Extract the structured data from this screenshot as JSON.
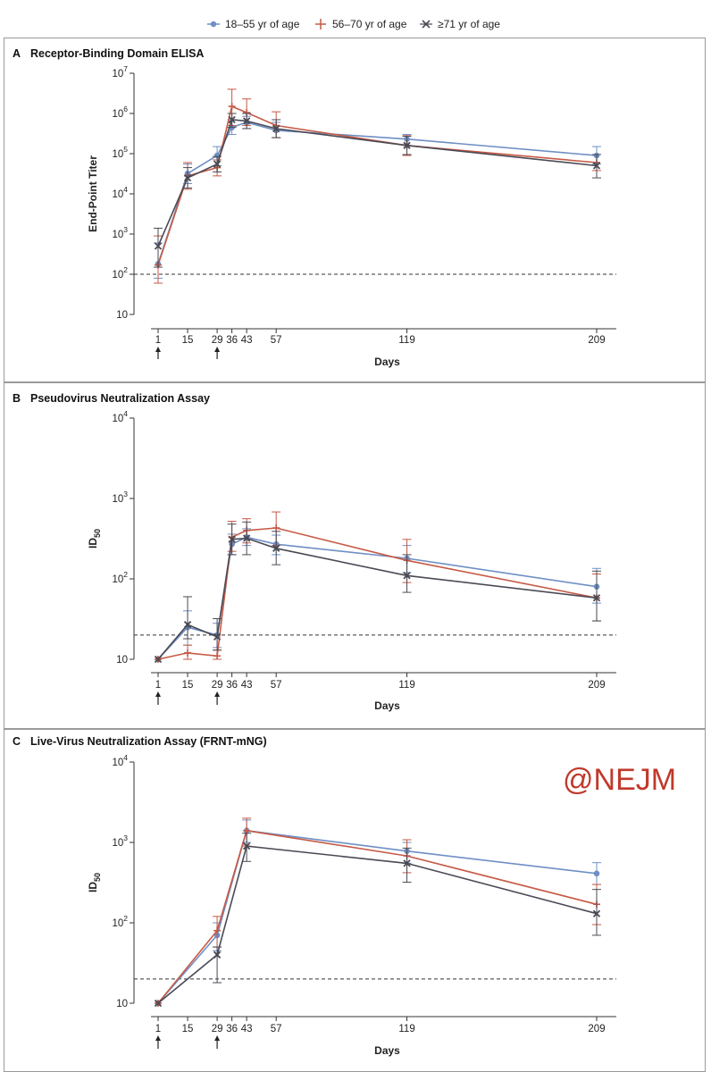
{
  "watermark": "@NEJM",
  "legend": [
    {
      "label": "18–55 yr of age",
      "color": "#6e8fc4",
      "marker": "circle"
    },
    {
      "label": "56–70 yr of age",
      "color": "#c65a46",
      "marker": "plus"
    },
    {
      "label": "≥71 yr of age",
      "color": "#4a4a55",
      "marker": "x"
    }
  ],
  "chart_data": [
    {
      "type": "line",
      "panel_letter": "A",
      "title": "Receptor-Binding Domain ELISA",
      "xlabel": "Days",
      "ylabel": "End-Point Titer",
      "yscale": "log",
      "ylim": [
        10,
        10000000
      ],
      "y_ticks": [
        {
          "value": 10,
          "base": "10",
          "exp": ""
        },
        {
          "value": 100,
          "base": "10",
          "exp": "2"
        },
        {
          "value": 1000,
          "base": "10",
          "exp": "3"
        },
        {
          "value": 10000,
          "base": "10",
          "exp": "4"
        },
        {
          "value": 100000,
          "base": "10",
          "exp": "5"
        },
        {
          "value": 1000000,
          "base": "10",
          "exp": "6"
        },
        {
          "value": 10000000,
          "base": "10",
          "exp": "7"
        }
      ],
      "x_ticks": [
        1,
        15,
        29,
        36,
        43,
        57,
        119,
        209
      ],
      "x_tick_labels": [
        "1",
        "15",
        "29",
        "36",
        "43",
        "57",
        "119",
        "209"
      ],
      "arrows_at": [
        1,
        29
      ],
      "threshold": 100,
      "series": [
        {
          "name": "18–55 yr of age",
          "x": [
            1,
            15,
            29,
            36,
            43,
            57,
            119,
            209
          ],
          "y": [
            180,
            32000,
            90000,
            450000,
            600000,
            380000,
            230000,
            90000
          ],
          "lo": [
            80,
            18000,
            50000,
            300000,
            420000,
            250000,
            160000,
            55000
          ],
          "hi": [
            600,
            55000,
            150000,
            700000,
            850000,
            600000,
            300000,
            150000
          ]
        },
        {
          "name": "56–70 yr of age",
          "x": [
            1,
            15,
            29,
            36,
            43,
            57,
            119,
            209
          ],
          "y": [
            170,
            28000,
            45000,
            1500000,
            1050000,
            500000,
            160000,
            60000
          ],
          "lo": [
            60,
            13000,
            28000,
            500000,
            500000,
            250000,
            90000,
            38000
          ],
          "hi": [
            900,
            60000,
            70000,
            4000000,
            2300000,
            1100000,
            280000,
            95000
          ]
        },
        {
          "name": "≥71 yr of age",
          "x": [
            1,
            15,
            29,
            36,
            43,
            57,
            119,
            209
          ],
          "y": [
            500,
            25000,
            55000,
            700000,
            650000,
            420000,
            160000,
            50000
          ],
          "lo": [
            150,
            14000,
            35000,
            450000,
            420000,
            250000,
            95000,
            25000
          ],
          "hi": [
            1400,
            45000,
            85000,
            1000000,
            1000000,
            700000,
            270000,
            95000
          ]
        }
      ]
    },
    {
      "type": "line",
      "panel_letter": "B",
      "title": "Pseudovirus Neutralization Assay",
      "xlabel": "Days",
      "ylabel": "ID",
      "ylabel_sub": "50",
      "yscale": "log",
      "ylim": [
        10,
        10000
      ],
      "y_ticks": [
        {
          "value": 10,
          "base": "10",
          "exp": ""
        },
        {
          "value": 100,
          "base": "10",
          "exp": "2"
        },
        {
          "value": 1000,
          "base": "10",
          "exp": "3"
        },
        {
          "value": 10000,
          "base": "10",
          "exp": "4"
        }
      ],
      "x_ticks": [
        1,
        15,
        29,
        36,
        43,
        57,
        119,
        209
      ],
      "x_tick_labels": [
        "1",
        "15",
        "29",
        "36",
        "43",
        "57",
        "119",
        "209"
      ],
      "arrows_at": [
        1,
        29
      ],
      "threshold": 20,
      "series": [
        {
          "name": "18–55 yr of age",
          "x": [
            1,
            15,
            29,
            36,
            43,
            57,
            119,
            209
          ],
          "y": [
            10,
            25,
            20,
            270,
            330,
            270,
            180,
            80
          ],
          "lo": [
            10,
            15,
            14,
            200,
            260,
            200,
            120,
            50
          ],
          "hi": [
            10,
            40,
            28,
            360,
            420,
            350,
            260,
            135
          ]
        },
        {
          "name": "56–70 yr of age",
          "x": [
            1,
            15,
            29,
            36,
            43,
            57,
            119,
            209
          ],
          "y": [
            10,
            12,
            11,
            330,
            400,
            430,
            170,
            58
          ],
          "lo": [
            10,
            10,
            10,
            220,
            280,
            260,
            90,
            30
          ],
          "hi": [
            10,
            15,
            13,
            520,
            560,
            680,
            310,
            115
          ]
        },
        {
          "name": "≥71 yr of age",
          "x": [
            1,
            15,
            29,
            36,
            43,
            57,
            119,
            209
          ],
          "y": [
            10,
            27,
            19,
            310,
            320,
            240,
            110,
            58
          ],
          "lo": [
            10,
            18,
            13,
            200,
            200,
            150,
            68,
            30
          ],
          "hi": [
            10,
            60,
            32,
            480,
            510,
            390,
            200,
            125
          ]
        }
      ]
    },
    {
      "type": "line",
      "panel_letter": "C",
      "title": "Live-Virus Neutralization Assay (FRNT-mNG)",
      "xlabel": "Days",
      "ylabel": "ID",
      "ylabel_sub": "50",
      "yscale": "log",
      "ylim": [
        10,
        10000
      ],
      "y_ticks": [
        {
          "value": 10,
          "base": "10",
          "exp": ""
        },
        {
          "value": 100,
          "base": "10",
          "exp": "2"
        },
        {
          "value": 1000,
          "base": "10",
          "exp": "3"
        },
        {
          "value": 10000,
          "base": "10",
          "exp": "4"
        }
      ],
      "x_ticks": [
        1,
        15,
        29,
        36,
        43,
        57,
        119,
        209
      ],
      "x_tick_labels": [
        "1",
        "15",
        "29",
        "36",
        "43",
        "57",
        "119",
        "209"
      ],
      "arrows_at": [
        1,
        29
      ],
      "threshold": 20,
      "series": [
        {
          "name": "18–55 yr of age",
          "x": [
            1,
            29,
            43,
            119,
            209
          ],
          "y": [
            10,
            70,
            1400,
            780,
            410
          ],
          "lo": [
            10,
            45,
            1000,
            550,
            300
          ],
          "hi": [
            10,
            100,
            1900,
            1000,
            560
          ]
        },
        {
          "name": "56–70 yr of age",
          "x": [
            1,
            29,
            43,
            119,
            209
          ],
          "y": [
            10,
            80,
            1400,
            680,
            170
          ],
          "lo": [
            10,
            50,
            900,
            420,
            95
          ],
          "hi": [
            10,
            120,
            2000,
            1080,
            300
          ]
        },
        {
          "name": "≥71 yr of age",
          "x": [
            1,
            29,
            43,
            119,
            209
          ],
          "y": [
            10,
            40,
            900,
            550,
            130
          ],
          "lo": [
            10,
            18,
            580,
            320,
            70
          ],
          "hi": [
            10,
            50,
            1300,
            850,
            260
          ]
        }
      ]
    }
  ]
}
